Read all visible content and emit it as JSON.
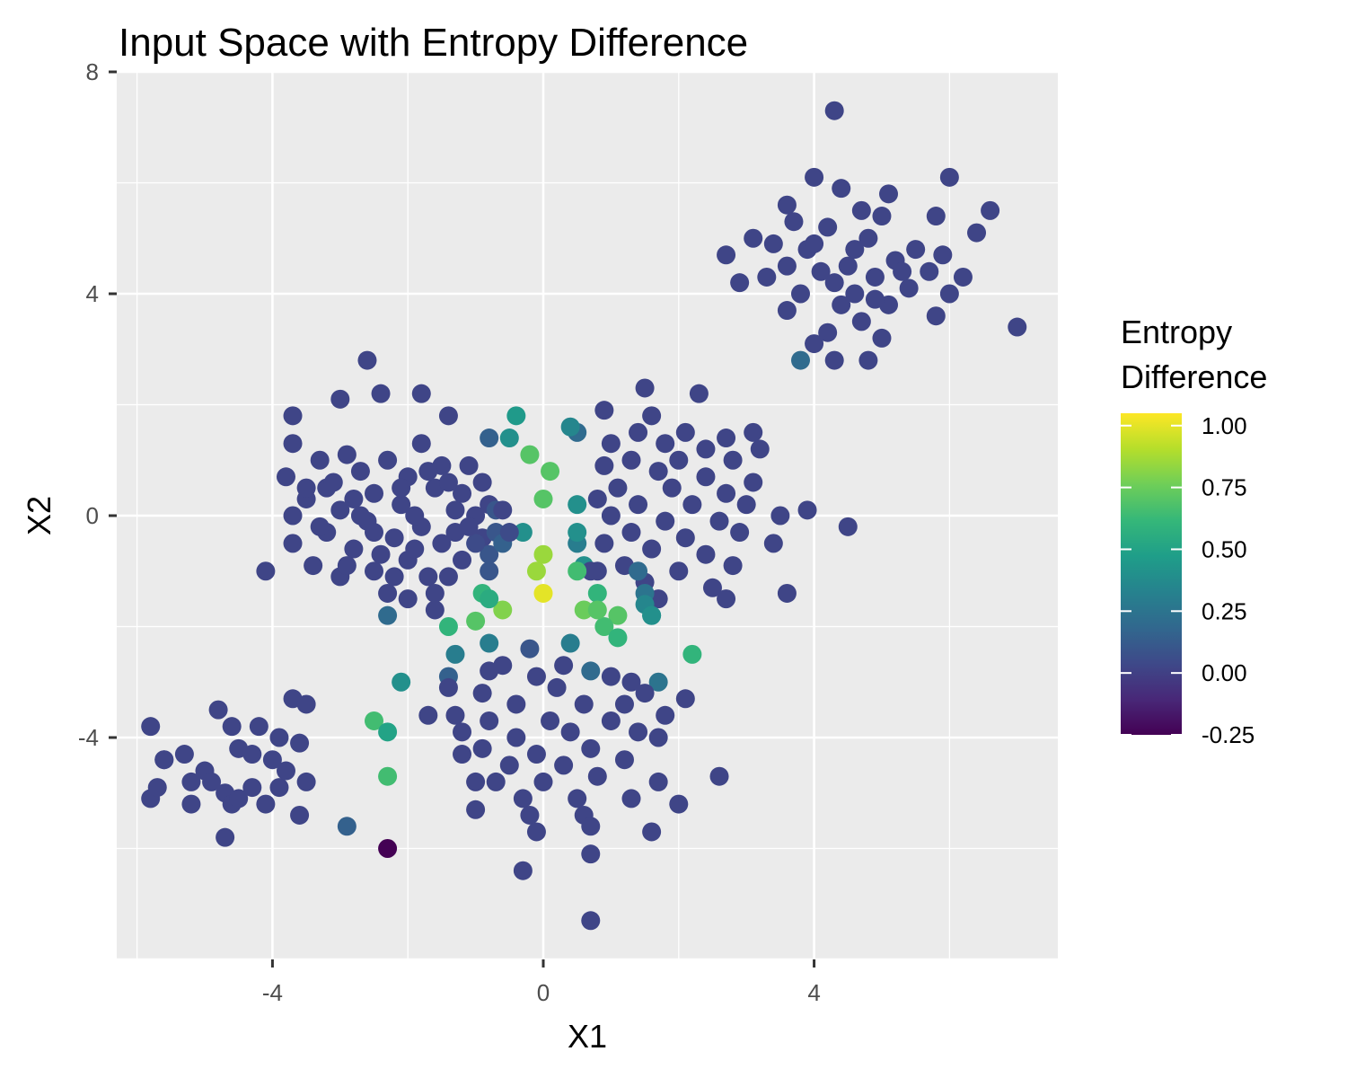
{
  "chart_data": {
    "type": "scatter",
    "title": "Input Space with Entropy Difference",
    "xlabel": "X1",
    "ylabel": "X2",
    "xlim": [
      -6.3,
      7.6
    ],
    "ylim": [
      -8.0,
      8.0
    ],
    "x_ticks": [
      -4,
      0,
      4
    ],
    "y_ticks": [
      8,
      4,
      0,
      -4
    ],
    "x_tick_labels": [
      "-4",
      "0",
      "4"
    ],
    "y_tick_labels": [
      "8",
      "4",
      "0",
      "-4"
    ],
    "grid": true,
    "legend": {
      "title_lines": [
        "Entropy",
        "Difference"
      ],
      "position": "right",
      "range": [
        -0.25,
        1.05
      ],
      "ticks": [
        1.0,
        0.75,
        0.5,
        0.25,
        0.0,
        -0.25
      ],
      "tick_labels": [
        "1.00",
        "0.75",
        "0.50",
        "0.25",
        "0.00",
        "-0.25"
      ]
    },
    "colors": {
      "panel": "#ebebeb",
      "grid": "#ffffff",
      "viridis": [
        "#440154",
        "#482878",
        "#3e4989",
        "#31688e",
        "#26828e",
        "#1f9e89",
        "#35b779",
        "#6ece58",
        "#b5de2b",
        "#fde725"
      ]
    },
    "points": [
      [
        4.3,
        7.3,
        0.02
      ],
      [
        4.0,
        6.1,
        0.02
      ],
      [
        4.4,
        5.9,
        0.02
      ],
      [
        6.0,
        6.1,
        0.02
      ],
      [
        5.1,
        5.8,
        0.02
      ],
      [
        3.6,
        5.6,
        0.02
      ],
      [
        4.7,
        5.5,
        0.02
      ],
      [
        6.6,
        5.5,
        0.02
      ],
      [
        5.0,
        5.4,
        0.02
      ],
      [
        3.7,
        5.3,
        0.02
      ],
      [
        5.8,
        5.4,
        0.02
      ],
      [
        6.4,
        5.1,
        0.02
      ],
      [
        4.2,
        5.2,
        0.02
      ],
      [
        3.1,
        5.0,
        0.02
      ],
      [
        3.4,
        4.9,
        0.02
      ],
      [
        4.8,
        5.0,
        0.02
      ],
      [
        5.5,
        4.8,
        0.02
      ],
      [
        3.9,
        4.8,
        0.02
      ],
      [
        2.7,
        4.7,
        0.02
      ],
      [
        5.9,
        4.7,
        0.02
      ],
      [
        4.5,
        4.5,
        0.02
      ],
      [
        3.6,
        4.5,
        0.02
      ],
      [
        5.2,
        4.6,
        0.02
      ],
      [
        4.1,
        4.4,
        0.02
      ],
      [
        5.7,
        4.4,
        0.02
      ],
      [
        4.9,
        4.3,
        0.02
      ],
      [
        3.3,
        4.3,
        0.02
      ],
      [
        6.2,
        4.3,
        0.02
      ],
      [
        4.3,
        4.2,
        0.02
      ],
      [
        2.9,
        4.2,
        0.02
      ],
      [
        5.4,
        4.1,
        0.02
      ],
      [
        4.6,
        4.0,
        0.02
      ],
      [
        3.8,
        4.0,
        0.02
      ],
      [
        6.0,
        4.0,
        0.02
      ],
      [
        4.4,
        3.8,
        0.02
      ],
      [
        5.1,
        3.8,
        0.02
      ],
      [
        3.6,
        3.7,
        0.02
      ],
      [
        5.8,
        3.6,
        0.02
      ],
      [
        4.7,
        3.5,
        0.02
      ],
      [
        4.2,
        3.3,
        0.02
      ],
      [
        5.0,
        3.2,
        0.02
      ],
      [
        7.0,
        3.4,
        0.02
      ],
      [
        4.0,
        3.1,
        0.02
      ],
      [
        4.8,
        2.8,
        0.02
      ],
      [
        4.3,
        2.8,
        0.02
      ],
      [
        3.8,
        2.8,
        0.2
      ],
      [
        4.6,
        4.8,
        0.02
      ],
      [
        5.3,
        4.4,
        0.02
      ],
      [
        4.0,
        4.9,
        0.02
      ],
      [
        4.9,
        3.9,
        0.02
      ],
      [
        -2.6,
        2.8,
        0.02
      ],
      [
        -2.4,
        2.2,
        0.02
      ],
      [
        -3.0,
        2.1,
        0.02
      ],
      [
        -1.8,
        2.2,
        0.02
      ],
      [
        -3.7,
        1.8,
        0.02
      ],
      [
        -1.4,
        1.8,
        0.02
      ],
      [
        -3.7,
        1.3,
        0.02
      ],
      [
        -1.8,
        1.3,
        0.02
      ],
      [
        -2.9,
        1.1,
        0.02
      ],
      [
        -2.3,
        1.0,
        0.02
      ],
      [
        -3.3,
        1.0,
        0.02
      ],
      [
        -1.5,
        0.9,
        0.02
      ],
      [
        -2.7,
        0.8,
        0.02
      ],
      [
        -1.1,
        0.9,
        0.02
      ],
      [
        -3.8,
        0.7,
        0.02
      ],
      [
        -2.0,
        0.7,
        0.02
      ],
      [
        -3.2,
        0.5,
        0.02
      ],
      [
        -1.6,
        0.5,
        0.02
      ],
      [
        -2.5,
        0.4,
        0.02
      ],
      [
        -3.5,
        0.3,
        0.02
      ],
      [
        -0.9,
        0.6,
        0.02
      ],
      [
        -2.1,
        0.2,
        0.02
      ],
      [
        -3.0,
        0.1,
        0.02
      ],
      [
        -1.3,
        0.1,
        0.02
      ],
      [
        -3.7,
        0.0,
        0.02
      ],
      [
        -2.6,
        -0.1,
        0.02
      ],
      [
        -1.8,
        -0.2,
        0.02
      ],
      [
        -0.8,
        0.2,
        0.02
      ],
      [
        -3.2,
        -0.3,
        0.02
      ],
      [
        -2.2,
        -0.4,
        0.02
      ],
      [
        -1.5,
        -0.5,
        0.02
      ],
      [
        -3.7,
        -0.5,
        0.02
      ],
      [
        -2.8,
        -0.6,
        0.02
      ],
      [
        -0.9,
        -0.4,
        0.02
      ],
      [
        -2.0,
        -0.8,
        0.02
      ],
      [
        -3.4,
        -0.9,
        0.02
      ],
      [
        -1.2,
        -0.8,
        0.02
      ],
      [
        -2.5,
        -1.0,
        0.02
      ],
      [
        -4.1,
        -1.0,
        0.02
      ],
      [
        -3.0,
        -1.1,
        0.02
      ],
      [
        -1.7,
        -1.1,
        0.02
      ],
      [
        -1.4,
        -1.1,
        0.02
      ],
      [
        -2.3,
        -1.4,
        0.02
      ],
      [
        -1.6,
        -1.4,
        0.02
      ],
      [
        -2.0,
        -1.5,
        0.02
      ],
      [
        -1.6,
        -1.7,
        0.02
      ],
      [
        -0.8,
        -1.0,
        0.1
      ],
      [
        -0.8,
        -0.7,
        0.1
      ],
      [
        -0.7,
        -0.3,
        0.1
      ],
      [
        -0.7,
        0.1,
        0.1
      ],
      [
        -0.8,
        1.4,
        0.15
      ],
      [
        -0.5,
        1.4,
        0.4
      ],
      [
        -0.4,
        1.8,
        0.45
      ],
      [
        -0.2,
        1.1,
        0.7
      ],
      [
        -0.3,
        -0.3,
        0.4
      ],
      [
        0.0,
        0.3,
        0.7
      ],
      [
        0.1,
        0.8,
        0.7
      ],
      [
        -2.3,
        -1.8,
        0.2
      ],
      [
        -0.6,
        -0.5,
        0.15
      ],
      [
        -1.0,
        -0.5,
        0.05
      ],
      [
        -1.2,
        0.4,
        0.02
      ],
      [
        -2.8,
        0.3,
        0.02
      ],
      [
        -1.9,
        0.0,
        0.02
      ],
      [
        -3.3,
        -0.2,
        0.02
      ],
      [
        -2.4,
        -0.7,
        0.02
      ],
      [
        -1.0,
        0.0,
        0.02
      ],
      [
        -2.9,
        -0.9,
        0.02
      ],
      [
        -1.3,
        -0.3,
        0.02
      ],
      [
        -2.1,
        0.5,
        0.02
      ],
      [
        -1.7,
        0.8,
        0.02
      ],
      [
        -0.6,
        0.1,
        0.02
      ],
      [
        -3.1,
        0.6,
        0.02
      ],
      [
        -2.2,
        -1.1,
        0.02
      ],
      [
        -1.4,
        0.6,
        0.02
      ],
      [
        -2.7,
        0.0,
        0.02
      ],
      [
        -0.5,
        -0.3,
        0.05
      ],
      [
        -2.5,
        -0.3,
        0.02
      ],
      [
        -1.9,
        -0.6,
        0.02
      ],
      [
        -3.5,
        0.5,
        0.02
      ],
      [
        -1.1,
        -0.2,
        0.02
      ],
      [
        1.5,
        2.3,
        0.02
      ],
      [
        2.3,
        2.2,
        0.02
      ],
      [
        0.9,
        1.9,
        0.02
      ],
      [
        1.6,
        1.8,
        0.02
      ],
      [
        1.4,
        1.5,
        0.02
      ],
      [
        2.1,
        1.5,
        0.02
      ],
      [
        2.7,
        1.4,
        0.02
      ],
      [
        3.1,
        1.5,
        0.02
      ],
      [
        0.5,
        1.5,
        0.2
      ],
      [
        1.0,
        1.3,
        0.02
      ],
      [
        1.8,
        1.3,
        0.02
      ],
      [
        2.4,
        1.2,
        0.02
      ],
      [
        3.2,
        1.2,
        0.02
      ],
      [
        1.3,
        1.0,
        0.02
      ],
      [
        2.0,
        1.0,
        0.02
      ],
      [
        2.8,
        1.0,
        0.02
      ],
      [
        0.9,
        0.9,
        0.02
      ],
      [
        1.7,
        0.8,
        0.02
      ],
      [
        2.4,
        0.7,
        0.02
      ],
      [
        3.1,
        0.6,
        0.02
      ],
      [
        1.1,
        0.5,
        0.02
      ],
      [
        1.9,
        0.5,
        0.02
      ],
      [
        2.7,
        0.4,
        0.02
      ],
      [
        0.8,
        0.3,
        0.02
      ],
      [
        1.4,
        0.2,
        0.02
      ],
      [
        2.2,
        0.2,
        0.02
      ],
      [
        3.0,
        0.2,
        0.02
      ],
      [
        1.0,
        0.0,
        0.02
      ],
      [
        1.8,
        -0.1,
        0.02
      ],
      [
        2.6,
        -0.1,
        0.02
      ],
      [
        3.5,
        0.0,
        0.02
      ],
      [
        3.9,
        0.1,
        0.02
      ],
      [
        4.5,
        -0.2,
        0.02
      ],
      [
        1.3,
        -0.3,
        0.02
      ],
      [
        2.1,
        -0.4,
        0.02
      ],
      [
        2.9,
        -0.3,
        0.02
      ],
      [
        0.9,
        -0.5,
        0.02
      ],
      [
        1.6,
        -0.6,
        0.02
      ],
      [
        2.4,
        -0.7,
        0.02
      ],
      [
        3.4,
        -0.5,
        0.02
      ],
      [
        1.2,
        -0.9,
        0.02
      ],
      [
        2.0,
        -1.0,
        0.02
      ],
      [
        2.8,
        -0.9,
        0.02
      ],
      [
        1.5,
        -1.2,
        0.02
      ],
      [
        2.5,
        -1.3,
        0.02
      ],
      [
        3.6,
        -1.4,
        0.02
      ],
      [
        1.7,
        -1.5,
        0.02
      ],
      [
        2.7,
        -1.5,
        0.02
      ],
      [
        0.8,
        -1.0,
        0.02
      ],
      [
        0.5,
        -0.5,
        0.3
      ],
      [
        0.5,
        -0.3,
        0.4
      ],
      [
        0.6,
        -0.9,
        0.4
      ],
      [
        0.4,
        1.6,
        0.35
      ],
      [
        0.5,
        0.2,
        0.4
      ],
      [
        0.7,
        -1.0,
        0.02
      ],
      [
        1.4,
        -1.0,
        0.2
      ],
      [
        1.5,
        -1.4,
        0.25
      ],
      [
        1.5,
        -1.6,
        0.35
      ],
      [
        1.6,
        -1.8,
        0.45
      ],
      [
        1.6,
        -1.8,
        0.4
      ],
      [
        0.8,
        -1.4,
        0.6
      ],
      [
        1.1,
        -1.8,
        0.7
      ],
      [
        0.9,
        -2.0,
        0.65
      ],
      [
        1.1,
        -2.2,
        0.6
      ],
      [
        0.6,
        -1.7,
        0.75
      ],
      [
        0.8,
        -1.7,
        0.7
      ],
      [
        0.5,
        -1.0,
        0.65
      ],
      [
        0.0,
        -1.4,
        1.0
      ],
      [
        -0.1,
        -1.0,
        0.85
      ],
      [
        0.0,
        -0.7,
        0.85
      ],
      [
        -0.6,
        -1.7,
        0.8
      ],
      [
        -0.9,
        -1.4,
        0.6
      ],
      [
        -0.8,
        -1.5,
        0.55
      ],
      [
        -1.0,
        -1.9,
        0.7
      ],
      [
        -1.4,
        -2.0,
        0.6
      ],
      [
        -1.3,
        -2.5,
        0.3
      ],
      [
        2.2,
        -2.5,
        0.6
      ],
      [
        -2.1,
        -3.0,
        0.4
      ],
      [
        -2.5,
        -3.7,
        0.65
      ],
      [
        -2.3,
        -3.9,
        0.5
      ],
      [
        -2.3,
        -4.7,
        0.65
      ],
      [
        -0.8,
        -2.3,
        0.3
      ],
      [
        0.4,
        -2.3,
        0.3
      ],
      [
        0.7,
        -2.8,
        0.2
      ],
      [
        -0.2,
        -2.4,
        0.1
      ],
      [
        -1.4,
        -2.9,
        0.15
      ],
      [
        -1.4,
        -3.1,
        0.02
      ],
      [
        -0.6,
        -2.7,
        0.02
      ],
      [
        -0.8,
        -2.8,
        0.02
      ],
      [
        0.3,
        -2.7,
        0.02
      ],
      [
        1.0,
        -2.9,
        0.02
      ],
      [
        -0.1,
        -2.9,
        0.02
      ],
      [
        1.3,
        -3.0,
        0.02
      ],
      [
        1.7,
        -3.0,
        0.25
      ],
      [
        -0.9,
        -3.2,
        0.02
      ],
      [
        0.2,
        -3.1,
        0.02
      ],
      [
        1.5,
        -3.2,
        0.02
      ],
      [
        2.1,
        -3.3,
        0.02
      ],
      [
        -0.4,
        -3.4,
        0.02
      ],
      [
        0.6,
        -3.4,
        0.02
      ],
      [
        1.2,
        -3.4,
        0.02
      ],
      [
        -1.3,
        -3.6,
        0.02
      ],
      [
        -0.8,
        -3.7,
        0.02
      ],
      [
        0.1,
        -3.7,
        0.02
      ],
      [
        1.0,
        -3.7,
        0.02
      ],
      [
        1.8,
        -3.6,
        0.02
      ],
      [
        -1.7,
        -3.6,
        0.02
      ],
      [
        -1.2,
        -3.9,
        0.02
      ],
      [
        -0.4,
        -4.0,
        0.02
      ],
      [
        0.4,
        -3.9,
        0.02
      ],
      [
        1.4,
        -3.9,
        0.02
      ],
      [
        -0.9,
        -4.2,
        0.02
      ],
      [
        -0.1,
        -4.3,
        0.02
      ],
      [
        0.7,
        -4.2,
        0.02
      ],
      [
        1.7,
        -4.0,
        0.02
      ],
      [
        -1.2,
        -4.3,
        0.02
      ],
      [
        -0.5,
        -4.5,
        0.02
      ],
      [
        0.3,
        -4.5,
        0.02
      ],
      [
        1.2,
        -4.4,
        0.02
      ],
      [
        -0.7,
        -4.8,
        0.02
      ],
      [
        0.0,
        -4.8,
        0.02
      ],
      [
        0.8,
        -4.7,
        0.02
      ],
      [
        1.7,
        -4.8,
        0.02
      ],
      [
        2.6,
        -4.7,
        0.02
      ],
      [
        -1.0,
        -4.8,
        0.02
      ],
      [
        -0.3,
        -5.1,
        0.02
      ],
      [
        0.5,
        -5.1,
        0.02
      ],
      [
        1.3,
        -5.1,
        0.02
      ],
      [
        2.0,
        -5.2,
        0.02
      ],
      [
        -1.0,
        -5.3,
        0.02
      ],
      [
        -0.2,
        -5.4,
        0.02
      ],
      [
        0.6,
        -5.4,
        0.02
      ],
      [
        -0.1,
        -5.7,
        0.02
      ],
      [
        0.7,
        -5.6,
        0.02
      ],
      [
        1.6,
        -5.7,
        0.02
      ],
      [
        0.7,
        -6.1,
        0.02
      ],
      [
        -0.3,
        -6.4,
        0.02
      ],
      [
        0.7,
        -7.3,
        0.02
      ],
      [
        -2.9,
        -5.6,
        0.15
      ],
      [
        -2.3,
        -6.0,
        -0.25
      ],
      [
        -5.8,
        -3.8,
        0.02
      ],
      [
        -5.6,
        -4.4,
        0.02
      ],
      [
        -5.3,
        -4.3,
        0.02
      ],
      [
        -4.8,
        -3.5,
        0.02
      ],
      [
        -4.6,
        -3.8,
        0.02
      ],
      [
        -4.2,
        -3.8,
        0.02
      ],
      [
        -3.7,
        -3.3,
        0.02
      ],
      [
        -3.5,
        -3.4,
        0.02
      ],
      [
        -3.6,
        -4.1,
        0.02
      ],
      [
        -4.0,
        -4.4,
        0.02
      ],
      [
        -4.5,
        -4.2,
        0.02
      ],
      [
        -5.0,
        -4.6,
        0.02
      ],
      [
        -5.2,
        -4.8,
        0.02
      ],
      [
        -4.7,
        -5.0,
        0.02
      ],
      [
        -4.3,
        -4.9,
        0.02
      ],
      [
        -3.9,
        -4.9,
        0.02
      ],
      [
        -3.5,
        -4.8,
        0.02
      ],
      [
        -5.8,
        -5.1,
        0.02
      ],
      [
        -5.2,
        -5.2,
        0.02
      ],
      [
        -4.6,
        -5.2,
        0.02
      ],
      [
        -4.1,
        -5.2,
        0.02
      ],
      [
        -3.6,
        -5.4,
        0.02
      ],
      [
        -4.7,
        -5.8,
        0.02
      ],
      [
        -5.6,
        -4.4,
        0.02
      ],
      [
        -3.8,
        -4.6,
        0.02
      ],
      [
        -4.3,
        -4.3,
        0.02
      ],
      [
        -3.9,
        -4.0,
        0.02
      ],
      [
        -4.9,
        -4.8,
        0.02
      ],
      [
        -5.7,
        -4.9,
        0.02
      ],
      [
        -4.5,
        -5.1,
        0.02
      ]
    ]
  }
}
